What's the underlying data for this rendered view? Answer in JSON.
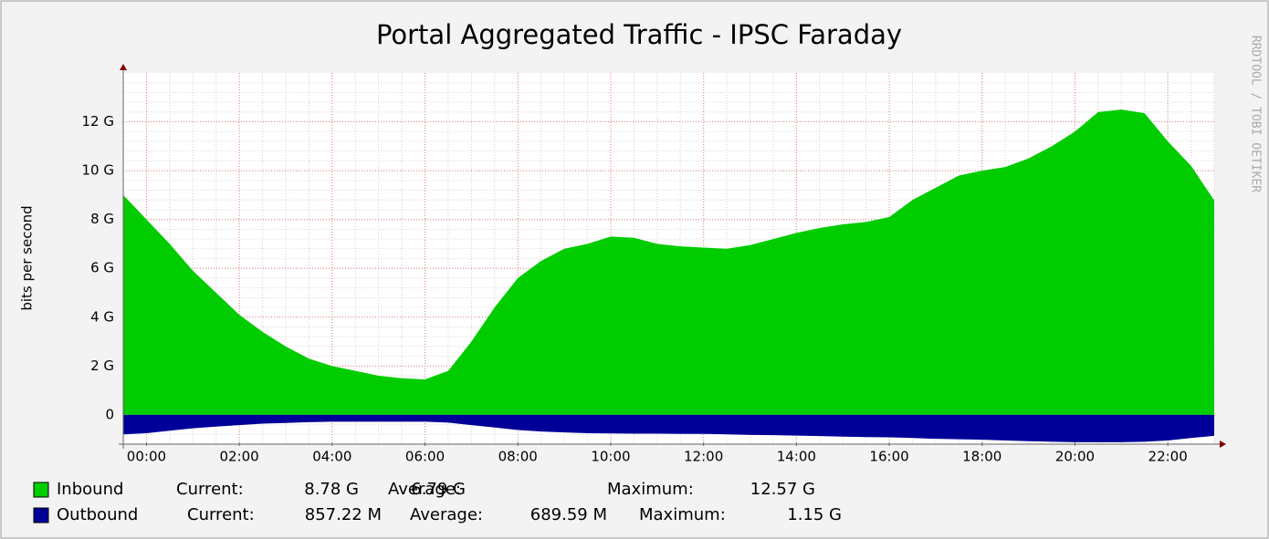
{
  "chart_data": {
    "type": "area",
    "title": "Portal Aggregated Traffic - IPSC Faraday",
    "y_label": "bits per second",
    "watermark": "RRDTOOL / TOBI OETIKER",
    "x": [
      -0.5,
      0,
      0.5,
      1,
      1.5,
      2,
      2.5,
      3,
      3.5,
      4,
      4.5,
      5,
      5.5,
      6,
      6.5,
      7,
      7.5,
      8,
      8.5,
      9,
      9.5,
      10,
      10.5,
      11,
      11.5,
      12,
      12.5,
      13,
      13.5,
      14,
      14.5,
      15,
      15.5,
      16,
      16.5,
      17,
      17.5,
      18,
      18.5,
      19,
      19.5,
      20,
      20.5,
      21,
      21.5,
      22,
      22.5,
      23
    ],
    "xlim": [
      -0.5,
      23
    ],
    "xticks": [
      {
        "value": 0,
        "label": "00:00"
      },
      {
        "value": 2,
        "label": "02:00"
      },
      {
        "value": 4,
        "label": "04:00"
      },
      {
        "value": 6,
        "label": "06:00"
      },
      {
        "value": 8,
        "label": "08:00"
      },
      {
        "value": 10,
        "label": "10:00"
      },
      {
        "value": 12,
        "label": "12:00"
      },
      {
        "value": 14,
        "label": "14:00"
      },
      {
        "value": 16,
        "label": "16:00"
      },
      {
        "value": 18,
        "label": "18:00"
      },
      {
        "value": 20,
        "label": "20:00"
      },
      {
        "value": 22,
        "label": "22:00"
      }
    ],
    "ylim": [
      -1.2,
      14
    ],
    "yticks": [
      0,
      {
        "value": 2,
        "label": "2 G"
      },
      {
        "value": 4,
        "label": "4 G"
      },
      {
        "value": 6,
        "label": "6 G"
      },
      {
        "value": 8,
        "label": "8 G"
      },
      {
        "value": 10,
        "label": "10 G"
      },
      {
        "value": 12,
        "label": "12 G"
      }
    ],
    "grid": true,
    "series": [
      {
        "name": "Inbound",
        "color": "#00cc00",
        "values": [
          9.0,
          8.0,
          7.0,
          5.9,
          5.0,
          4.1,
          3.4,
          2.8,
          2.3,
          2.0,
          1.8,
          1.6,
          1.5,
          1.45,
          1.8,
          3.0,
          4.4,
          5.6,
          6.3,
          6.8,
          7.0,
          7.3,
          7.25,
          7.0,
          6.9,
          6.85,
          6.8,
          6.95,
          7.2,
          7.45,
          7.65,
          7.8,
          7.9,
          8.1,
          8.8,
          9.3,
          9.8,
          10.0,
          10.15,
          10.5,
          11.0,
          11.6,
          12.4,
          12.5,
          12.35,
          11.2,
          10.2,
          8.78
        ],
        "stats": [
          "Current:",
          "8.78 G",
          "Average:",
          "6.79 G",
          "Maximum:",
          "12.57 G"
        ]
      },
      {
        "name": "Outbound",
        "color": "#000099",
        "values": [
          -0.8,
          -0.75,
          -0.65,
          -0.55,
          -0.48,
          -0.42,
          -0.36,
          -0.33,
          -0.3,
          -0.28,
          -0.28,
          -0.28,
          -0.28,
          -0.28,
          -0.32,
          -0.42,
          -0.52,
          -0.62,
          -0.68,
          -0.72,
          -0.75,
          -0.76,
          -0.77,
          -0.77,
          -0.78,
          -0.78,
          -0.8,
          -0.82,
          -0.83,
          -0.85,
          -0.87,
          -0.89,
          -0.91,
          -0.92,
          -0.95,
          -0.98,
          -1.0,
          -1.02,
          -1.05,
          -1.08,
          -1.1,
          -1.12,
          -1.12,
          -1.12,
          -1.1,
          -1.05,
          -0.95,
          -0.86
        ],
        "stats": [
          "Current:",
          "857.22 M",
          "Average:",
          "689.59 M",
          "Maximum:",
          "1.15 G"
        ]
      }
    ]
  }
}
